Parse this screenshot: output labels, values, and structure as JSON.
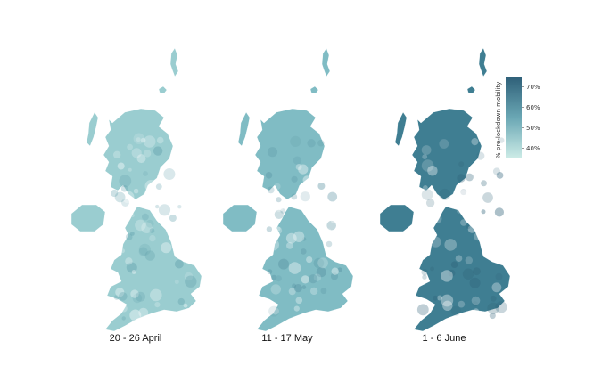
{
  "panels": [
    {
      "label": "20 - 26 April",
      "base_color": "#9acdd0",
      "dark_color": "#5a9aa8",
      "level_pct": 45
    },
    {
      "label": "11 - 17 May",
      "base_color": "#80bcc4",
      "dark_color": "#4f8b9b",
      "level_pct": 52
    },
    {
      "label": "1 - 6 June",
      "base_color": "#3f7e92",
      "dark_color": "#2f6278",
      "level_pct": 65
    }
  ],
  "legend": {
    "title": "% pre-lockdown mobility",
    "ticks": [
      "70%",
      "60%",
      "50%",
      "40%"
    ],
    "tick_values": [
      70,
      60,
      50,
      40
    ],
    "range": [
      35,
      75
    ],
    "color_low": "#cdece7",
    "color_high": "#2e5f78"
  }
}
